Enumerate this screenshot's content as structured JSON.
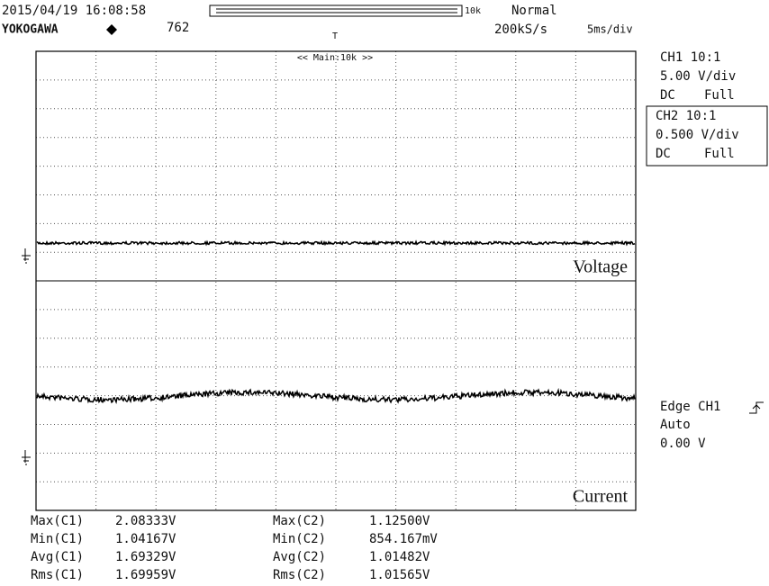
{
  "header": {
    "datetime": "2015/04/19 16:08:58",
    "brand": "YOKOGAWA",
    "count": "762",
    "zoom": "10k",
    "mode": "Normal",
    "sample_rate": "200kS/s",
    "timebase": "5ms/div",
    "zoom_label": "<< Main:10k >>",
    "trigger_marker": "T"
  },
  "channels": [
    {
      "probe": "CH1 10:1",
      "scale": "5.00 V/div",
      "coupling": "DC",
      "bandwidth": "Full"
    },
    {
      "probe": "CH2 10:1",
      "scale": "0.500 V/div",
      "coupling": "DC",
      "bandwidth": "Full"
    }
  ],
  "trigger": {
    "source": "Edge CH1",
    "mode": "Auto",
    "level": "0.00 V"
  },
  "traces": [
    "Voltage",
    "Current"
  ],
  "measurements": {
    "rows": [
      [
        "Max(C1)",
        "2.08333V",
        "Max(C2)",
        "1.12500V"
      ],
      [
        "Min(C1)",
        "1.04167V",
        "Min(C2)",
        "854.167mV"
      ],
      [
        "Avg(C1)",
        "1.69329V",
        "Avg(C2)",
        "1.01482V"
      ],
      [
        "Rms(C1)",
        "1.69959V",
        "Rms(C2)",
        "1.01565V"
      ]
    ]
  }
}
